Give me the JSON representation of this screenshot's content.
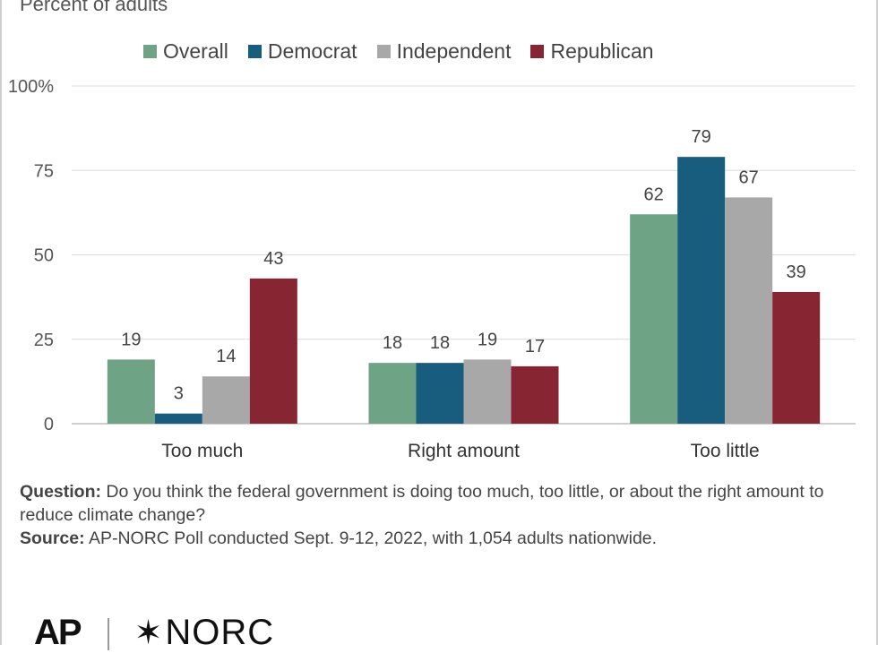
{
  "subtitle": "Percent of adults",
  "legend": [
    {
      "name": "Overall",
      "color": "#6fa386"
    },
    {
      "name": "Democrat",
      "color": "#185c7e"
    },
    {
      "name": "Independent",
      "color": "#a8a8a8"
    },
    {
      "name": "Republican",
      "color": "#872532"
    }
  ],
  "chart_data": {
    "type": "bar",
    "categories": [
      "Too much",
      "Right amount",
      "Too little"
    ],
    "series": [
      {
        "name": "Overall",
        "values": [
          19,
          18,
          62
        ]
      },
      {
        "name": "Democrat",
        "values": [
          3,
          18,
          79
        ]
      },
      {
        "name": "Independent",
        "values": [
          14,
          19,
          67
        ]
      },
      {
        "name": "Republican",
        "values": [
          43,
          17,
          39
        ]
      }
    ],
    "ylim": [
      0,
      100
    ],
    "yticks": [
      "0",
      "25",
      "50",
      "75",
      "100%"
    ],
    "grid": true,
    "legend_position": "top"
  },
  "notes": {
    "question_label": "Question:",
    "question_text": "Do you think the federal government is doing too much, too little, or about the right amount to reduce climate change?",
    "source_label": "Source:",
    "source_text": "AP-NORC Poll conducted Sept. 9-12, 2022, with 1,054 adults nationwide."
  },
  "logos": {
    "ap": "AP",
    "norc": "NORC",
    "norc_mark": "✶"
  }
}
